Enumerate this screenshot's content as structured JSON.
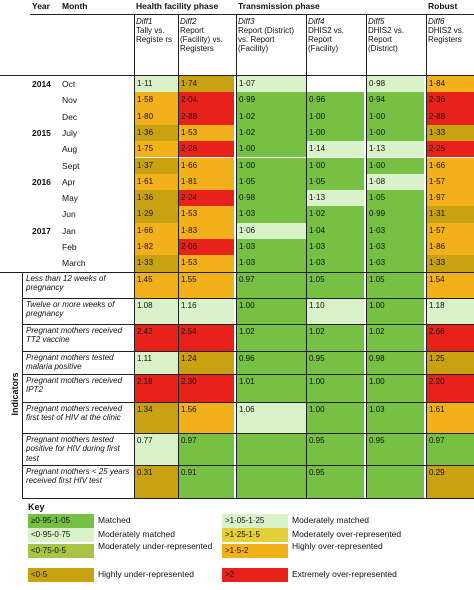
{
  "headers": {
    "year": "Year",
    "month": "Month",
    "health_facility": "Health facility phase",
    "transmission": "Transmission phase",
    "robust": "Robust",
    "diff1": {
      "code": "Diff1",
      "desc": "Tally vs. Registe rs"
    },
    "diff2": {
      "code": "Diff2",
      "desc": "Report (Facility) vs. Registers"
    },
    "diff3": {
      "code": "Diff3",
      "desc": "Report (District) vs. Report (Facility)"
    },
    "diff4": {
      "code": "Diff4",
      "desc": "DHIS2 vs. Report (Facility)"
    },
    "diff5": {
      "code": "Diff5",
      "desc": "DHIS2 vs. Report (District)"
    },
    "diff6": {
      "code": "Diff6",
      "desc": "DHIS2 vs. Registers"
    }
  },
  "colors": {
    "matched": "#76c043",
    "moderately_matched": "#d9f2c9",
    "moderately_under": "#a7c444",
    "highly_under": "#c9a214",
    "moderately_over": "#e5cf3a",
    "highly_over": "#f2b01b",
    "extremely_over": "#e8221b",
    "white": "#ffffff"
  },
  "months": [
    {
      "year": "2014",
      "month": "Oct",
      "values": [
        "1·11",
        "1·74",
        "1·07",
        "",
        "0·98",
        "1·84"
      ],
      "cats": [
        "mm",
        "hu",
        "mm",
        "w",
        "mm",
        "ho"
      ]
    },
    {
      "year": "",
      "month": "Nov",
      "values": [
        "1·58",
        "2·04",
        "0·99",
        "0·96",
        "0·94",
        "2·36"
      ],
      "cats": [
        "ho",
        "xo",
        "m",
        "m",
        "m",
        "xo"
      ]
    },
    {
      "year": "",
      "month": "Dec",
      "values": [
        "1·80",
        "2·88",
        "1·02",
        "1·00",
        "1·00",
        "2·88"
      ],
      "cats": [
        "ho",
        "xo",
        "m",
        "m",
        "m",
        "xo"
      ]
    },
    {
      "year": "2015",
      "month": "July",
      "values": [
        "1·36",
        "1·53",
        "1·02",
        "1·00",
        "1·00",
        "1·33"
      ],
      "cats": [
        "hu",
        "ho",
        "m",
        "m",
        "m",
        "hu"
      ]
    },
    {
      "year": "",
      "month": "Aug",
      "values": [
        "1·75",
        "2·26",
        "1·00",
        "1·14",
        "1·13",
        "2·25"
      ],
      "cats": [
        "ho",
        "xo",
        "m",
        "mm",
        "mm",
        "xo"
      ]
    },
    {
      "year": "",
      "month": "Sept",
      "values": [
        "1·37",
        "1·66",
        "1·00",
        "1·00",
        "1·00",
        "1·66"
      ],
      "cats": [
        "hu",
        "ho",
        "m",
        "m",
        "m",
        "ho"
      ]
    },
    {
      "year": "2016",
      "month": "Apr",
      "values": [
        "1·61",
        "1·81",
        "1·05",
        "1·05",
        "1·08",
        "1·57"
      ],
      "cats": [
        "ho",
        "ho",
        "m",
        "m",
        "mm",
        "ho"
      ]
    },
    {
      "year": "",
      "month": "May",
      "values": [
        "1·36",
        "2·24",
        "0·98",
        "1·13",
        "1·05",
        "1·97"
      ],
      "cats": [
        "hu",
        "xo",
        "m",
        "mm",
        "m",
        "ho"
      ]
    },
    {
      "year": "",
      "month": "Jun",
      "values": [
        "1·29",
        "1·53",
        "1·03",
        "1·02",
        "0·99",
        "1·31"
      ],
      "cats": [
        "hu",
        "ho",
        "m",
        "m",
        "m",
        "hu"
      ]
    },
    {
      "year": "2017",
      "month": "Jan",
      "values": [
        "1·66",
        "1·83",
        "1·06",
        "1·04",
        "1·03",
        "1·57"
      ],
      "cats": [
        "ho",
        "ho",
        "mm",
        "m",
        "m",
        "ho"
      ]
    },
    {
      "year": "",
      "month": "Feb",
      "values": [
        "1·82",
        "2·06",
        "1·03",
        "1·03",
        "1·03",
        "1·86"
      ],
      "cats": [
        "ho",
        "xo",
        "m",
        "m",
        "m",
        "ho"
      ]
    },
    {
      "year": "",
      "month": "March",
      "values": [
        "1·33",
        "1·53",
        "1·03",
        "1·03",
        "1·03",
        "1·33"
      ],
      "cats": [
        "hu",
        "ho",
        "m",
        "m",
        "m",
        "hu"
      ]
    }
  ],
  "indicators_label": "Indicators",
  "indicators": [
    {
      "label": "Less than 12 weeks of pregnancy",
      "values": [
        "1.45",
        "1.55",
        "0.97",
        "1.05",
        "1.05",
        "1.54"
      ],
      "cats": [
        "ho",
        "ho",
        "m",
        "m",
        "m",
        "ho"
      ]
    },
    {
      "label": "Twelve or more weeks of pregnancy",
      "values": [
        "1.08",
        "1.16",
        "1.00",
        "1.10",
        "1.00",
        "1.18"
      ],
      "cats": [
        "mm",
        "mm",
        "m",
        "mm",
        "m",
        "mm"
      ]
    },
    {
      "label": "Pregnant mothers received TT2 vaccine",
      "values": [
        "2.42",
        "2.54",
        "1.02",
        "1.02",
        "1.02",
        "2.66"
      ],
      "cats": [
        "xo",
        "xo",
        "m",
        "m",
        "m",
        "xo"
      ]
    },
    {
      "label": "Pregnant mothers tested malaria positive",
      "values": [
        "1.11",
        "1.24",
        "0.96",
        "0.95",
        "0.98",
        "1.25"
      ],
      "cats": [
        "mm",
        "hu",
        "m",
        "m",
        "m",
        "hu"
      ]
    },
    {
      "label": "Pregnant mothers received IPT2",
      "values": [
        "2.18",
        "2.30",
        "1.01",
        "1.00",
        "1.00",
        "2.20"
      ],
      "cats": [
        "xo",
        "xo",
        "m",
        "m",
        "m",
        "xo"
      ]
    },
    {
      "label": "Pregnant mothers received first test of HIV at the clinic",
      "values": [
        "1.34",
        "1.56",
        "1.06",
        "1.00",
        "1.03",
        "1.61"
      ],
      "cats": [
        "hu",
        "ho",
        "mm",
        "m",
        "m",
        "ho"
      ]
    },
    {
      "label": "Pregnant mothers tested positive for HIV during first test",
      "values": [
        "0.77",
        "0.97",
        "",
        "0.95",
        "0.95",
        "0.97"
      ],
      "cats": [
        "mm",
        "m",
        "m",
        "m",
        "m",
        "m"
      ]
    },
    {
      "label": "Pregnant mothers < 25 years received first HIV test",
      "values": [
        "0.31",
        "0.91",
        "",
        "0.95",
        "",
        "0.29"
      ],
      "cats": [
        "hu",
        "m",
        "m",
        "m",
        "m",
        "hu"
      ]
    }
  ],
  "key": {
    "title": "Key",
    "left": [
      {
        "code": "≥0·95-1·05",
        "desc": "Matched",
        "cat": "m"
      },
      {
        "code": "<0·95-0·75",
        "desc": "Moderately matched",
        "cat": "mm"
      },
      {
        "code": "<0·75-0·5",
        "desc": "Moderately under-represented",
        "cat": "mu"
      },
      {
        "code": "<0·5",
        "desc": "Highly under-represented",
        "cat": "hu"
      }
    ],
    "right": [
      {
        "code": ">1·05-1·25",
        "desc": "Moderately matched",
        "cat": "mm"
      },
      {
        "code": ">1·25-1·5",
        "desc": "Moderately over-represented",
        "cat": "mo"
      },
      {
        "code": ">1·5-2",
        "desc": "Highly over-represented",
        "cat": "ho"
      },
      {
        "code": ">2",
        "desc": "Extremely over-represented",
        "cat": "xo"
      }
    ]
  }
}
